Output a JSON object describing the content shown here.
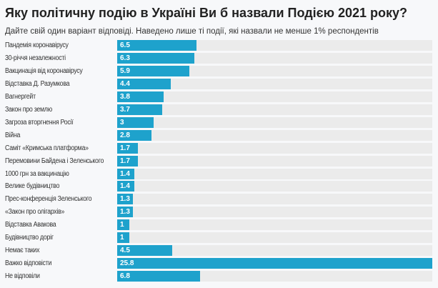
{
  "chart_data": {
    "type": "bar",
    "orientation": "horizontal",
    "title": "Яку політичну подію в Україні Ви б назвали Подією 2021 року?",
    "subtitle": "Дайте свій один варіант відповіді. Наведено лише ті події, які назвали не менше 1% респондентів",
    "categories": [
      "Пандемія коронавірусу",
      "30-річчя незалежності",
      "Вакцинація від коронавірусу",
      "Відставка Д. Разумкова",
      "Вагнергейт",
      "Закон про землю",
      "Загроза вторгнення Росії",
      "Війна",
      "Саміт «Кримська платформа»",
      "Перемовини Байдена і Зеленського",
      "1000 грн за вакцинацію",
      "Велике будівництво",
      "Прес-конференція Зеленського",
      "«Закон про олігархів»",
      "Відставка Авакова",
      "Будівництво доріг",
      "Немає таких",
      "Важко відповісти",
      "Не відповіли"
    ],
    "values": [
      6.5,
      6.3,
      5.9,
      4.4,
      3.8,
      3.7,
      3,
      2.8,
      1.7,
      1.7,
      1.4,
      1.4,
      1.3,
      1.3,
      1,
      1,
      4.5,
      25.8,
      6.8
    ],
    "labels": [
      "6.5",
      "6.3",
      "5.9",
      "4.4",
      "3.8",
      "3.7",
      "3",
      "2.8",
      "1.7",
      "1.7",
      "1.4",
      "1.4",
      "1.3",
      "1.3",
      "1",
      "1",
      "4.5",
      "25.8",
      "6.8"
    ],
    "xlim": [
      0,
      25.8
    ],
    "grid": false,
    "colors": {
      "bar": "#1ea2cc",
      "track": "#ebebeb",
      "background": "#f7f8fa"
    }
  }
}
